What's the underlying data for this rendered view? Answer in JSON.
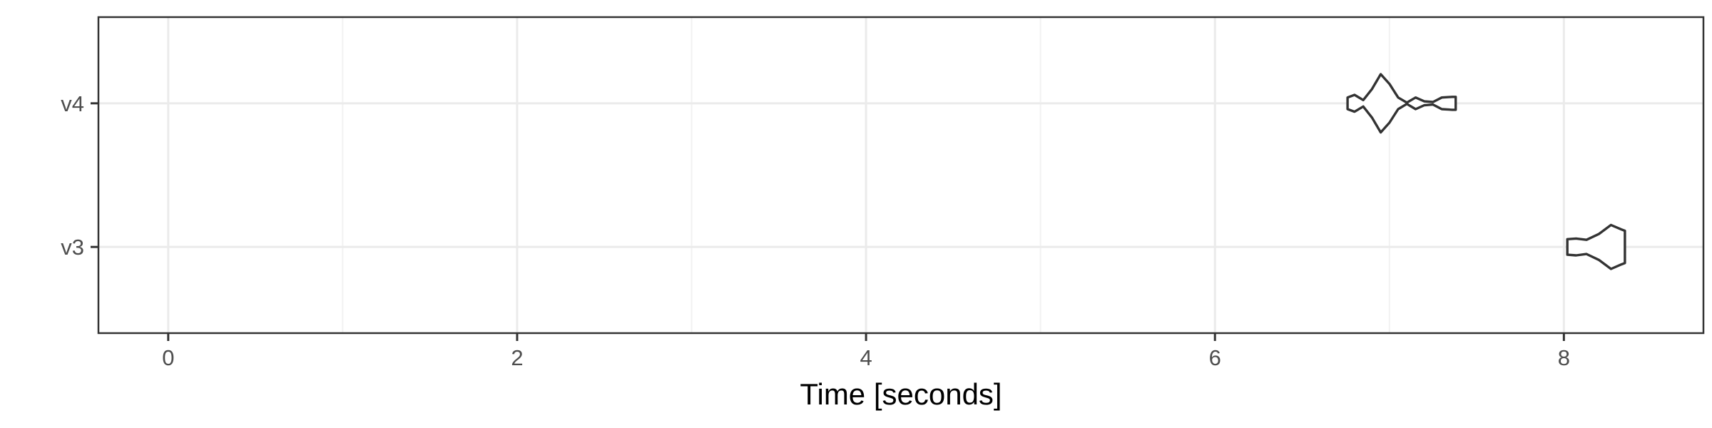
{
  "chart_data": {
    "type": "violin",
    "xlabel": "Time [seconds]",
    "ylabel": "",
    "xlim": [
      -0.4,
      8.8
    ],
    "x_ticks": [
      0,
      2,
      4,
      6,
      8
    ],
    "x_minor_ticks": [
      1,
      3,
      5,
      7
    ],
    "categories": [
      "v3",
      "v4"
    ],
    "grid": true,
    "colors": {
      "outline": "#333333",
      "fill": "#ffffff",
      "grid": "#ebebeb"
    },
    "series": [
      {
        "category": "v4",
        "profile": [
          [
            6.76,
            0.09
          ],
          [
            6.8,
            0.13
          ],
          [
            6.85,
            0.05
          ],
          [
            6.9,
            0.22
          ],
          [
            6.95,
            0.45
          ],
          [
            7.0,
            0.3
          ],
          [
            7.05,
            0.09
          ],
          [
            7.1,
            0.01
          ],
          [
            7.15,
            0.09
          ],
          [
            7.2,
            0.03
          ],
          [
            7.25,
            0.02
          ],
          [
            7.3,
            0.09
          ],
          [
            7.36,
            0.1
          ],
          [
            7.38,
            0.1
          ]
        ]
      },
      {
        "category": "v3",
        "profile": [
          [
            8.02,
            0.12
          ],
          [
            8.07,
            0.13
          ],
          [
            8.13,
            0.11
          ],
          [
            8.2,
            0.2
          ],
          [
            8.27,
            0.34
          ],
          [
            8.33,
            0.27
          ],
          [
            8.35,
            0.25
          ]
        ]
      }
    ]
  }
}
